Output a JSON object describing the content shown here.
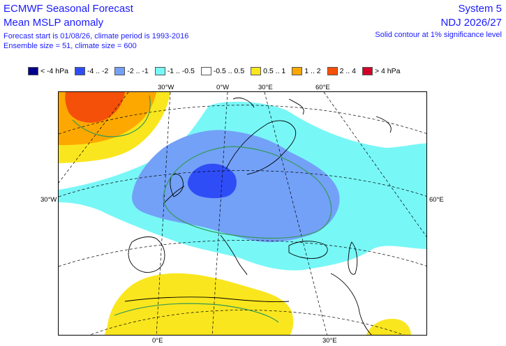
{
  "header": {
    "title_line1": "ECMWF Seasonal Forecast",
    "title_line2": "Mean MSLP anomaly",
    "subtitle_line1": "Forecast start is 01/08/26, climate period is 1993-2016",
    "subtitle_line2": "Ensemble size = 51, climate size = 600",
    "system": "System 5",
    "period": "NDJ 2026/27",
    "significance_note": "Solid contour at 1% significance level"
  },
  "legend": [
    {
      "label": "< -4 hPa",
      "color": "#00008c"
    },
    {
      "label": "-4 .. -2",
      "color": "#2f4df7"
    },
    {
      "label": "-2 .. -1",
      "color": "#73a1f7"
    },
    {
      "label": "-1 .. -0.5",
      "color": "#78f7f7"
    },
    {
      "label": "-0.5 .. 0.5",
      "color": "#ffffff"
    },
    {
      "label": "0.5 .. 1",
      "color": "#fae61e"
    },
    {
      "label": "1 .. 2",
      "color": "#fca800"
    },
    {
      "label": "2 .. 4",
      "color": "#f5500a"
    },
    {
      "label": "> 4 hPa",
      "color": "#d20028"
    }
  ],
  "map": {
    "region": "Europe / North Atlantic",
    "variable": "Mean MSLP anomaly (hPa)",
    "coastline_color": "#000000",
    "significance_contour_color": "#339955",
    "graticule_labels": {
      "top": [
        "30°W",
        "0°W",
        "30°E",
        "60°E"
      ],
      "left": [
        "30°W"
      ],
      "right": [
        "60°E"
      ],
      "bottom": [
        "0°E",
        "30°E"
      ]
    }
  }
}
